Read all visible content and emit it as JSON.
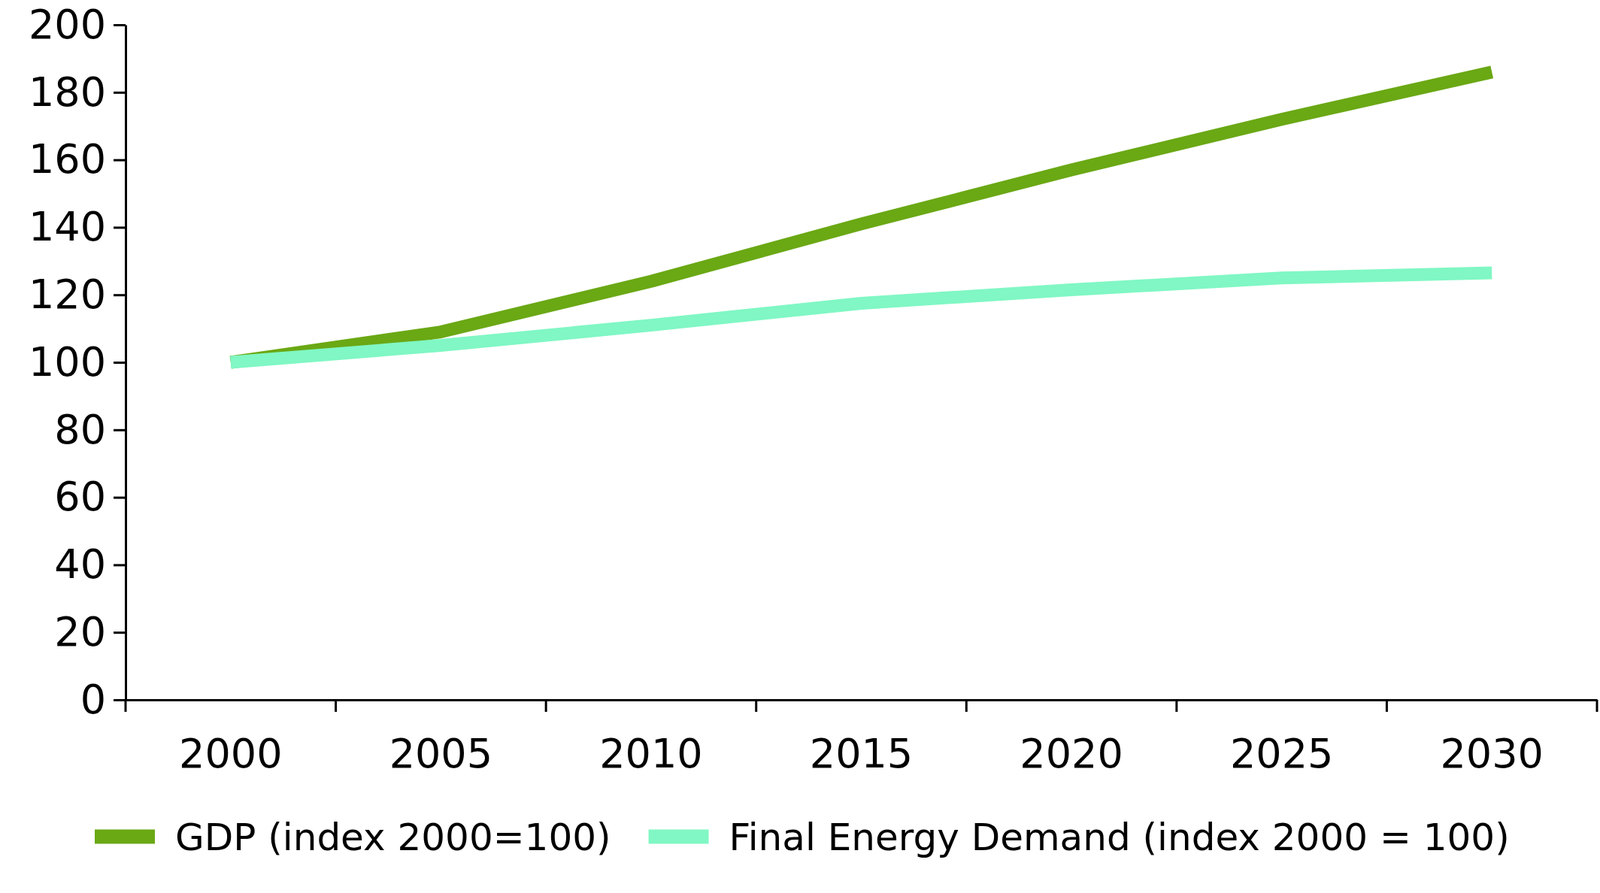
{
  "chart_data": {
    "type": "line",
    "categories": [
      "2000",
      "2005",
      "2010",
      "2015",
      "2020",
      "2025",
      "2030"
    ],
    "series": [
      {
        "name": "GDP (index 2000=100)",
        "color": "#6aa814",
        "values": [
          100,
          109,
          124,
          141,
          157,
          172,
          186
        ]
      },
      {
        "name": "Final Energy Demand (index 2000 = 100)",
        "color": "#80f7c4",
        "values": [
          100,
          105,
          111,
          117.5,
          121.5,
          125,
          126.5
        ]
      }
    ],
    "ylim": [
      0,
      200
    ],
    "yticks": [
      0,
      20,
      40,
      60,
      80,
      100,
      120,
      140,
      160,
      180,
      200
    ],
    "grid": false,
    "legend": "bottom"
  }
}
